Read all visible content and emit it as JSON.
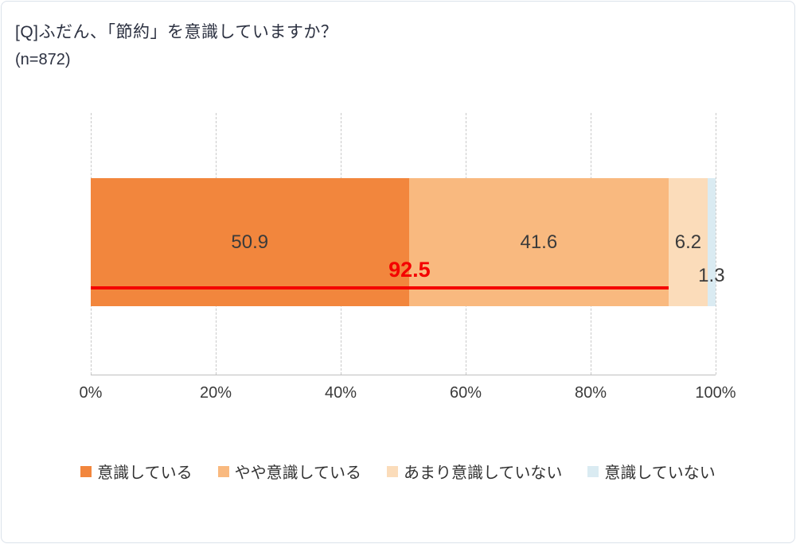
{
  "title": "[Q]ふだん、「節約」を意識していますか？",
  "sample_size": "(n=872)",
  "chart_data": {
    "type": "bar",
    "orientation": "horizontal",
    "stacked": true,
    "title": "[Q]ふだん、「節約」を意識していますか？",
    "subtitle": "(n=872)",
    "series": [
      {
        "name": "意識している",
        "value": 50.9,
        "label": "50.9",
        "color": "#F2863D"
      },
      {
        "name": "やや意識している",
        "value": 41.6,
        "label": "41.6",
        "color": "#F9B97F"
      },
      {
        "name": "あまり意識していない",
        "value": 6.2,
        "label": "6.2",
        "color": "#FBDCBA"
      },
      {
        "name": "意識していない",
        "value": 1.3,
        "label": "1.3",
        "color": "#DAEBF2"
      }
    ],
    "label_dy": [
      0,
      0,
      0,
      42
    ],
    "xlim": [
      0,
      100
    ],
    "x_ticks": [
      {
        "value": 0,
        "label": "0%"
      },
      {
        "value": 20,
        "label": "20%"
      },
      {
        "value": 40,
        "label": "40%"
      },
      {
        "value": 60,
        "label": "60%"
      },
      {
        "value": 80,
        "label": "80%"
      },
      {
        "value": 100,
        "label": "100%"
      }
    ],
    "annotation": {
      "label": "92.5",
      "value": 92.5,
      "color": "#F40000"
    },
    "legend_position": "bottom",
    "grid": "vertical-dashed"
  }
}
